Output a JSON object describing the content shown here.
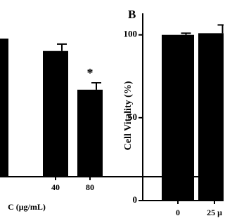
{
  "chart_data": [
    {
      "type": "bar",
      "x_label": "C (μg/mL)",
      "categories": [
        null,
        "40",
        "80"
      ],
      "values": [
        100,
        91,
        63
      ],
      "errors": [
        null,
        5,
        5
      ],
      "annotations": [
        null,
        null,
        "*"
      ],
      "color": "#000000",
      "ylim": [
        0,
        100
      ]
    },
    {
      "type": "bar",
      "title": "B",
      "y_label": "Cell Vitality (%)",
      "categories": [
        "0",
        "25 μ"
      ],
      "values": [
        100,
        101
      ],
      "errors": [
        1,
        5
      ],
      "color": "#000000",
      "ylim": [
        0,
        113
      ],
      "yticks": [
        0,
        50,
        100
      ]
    }
  ]
}
